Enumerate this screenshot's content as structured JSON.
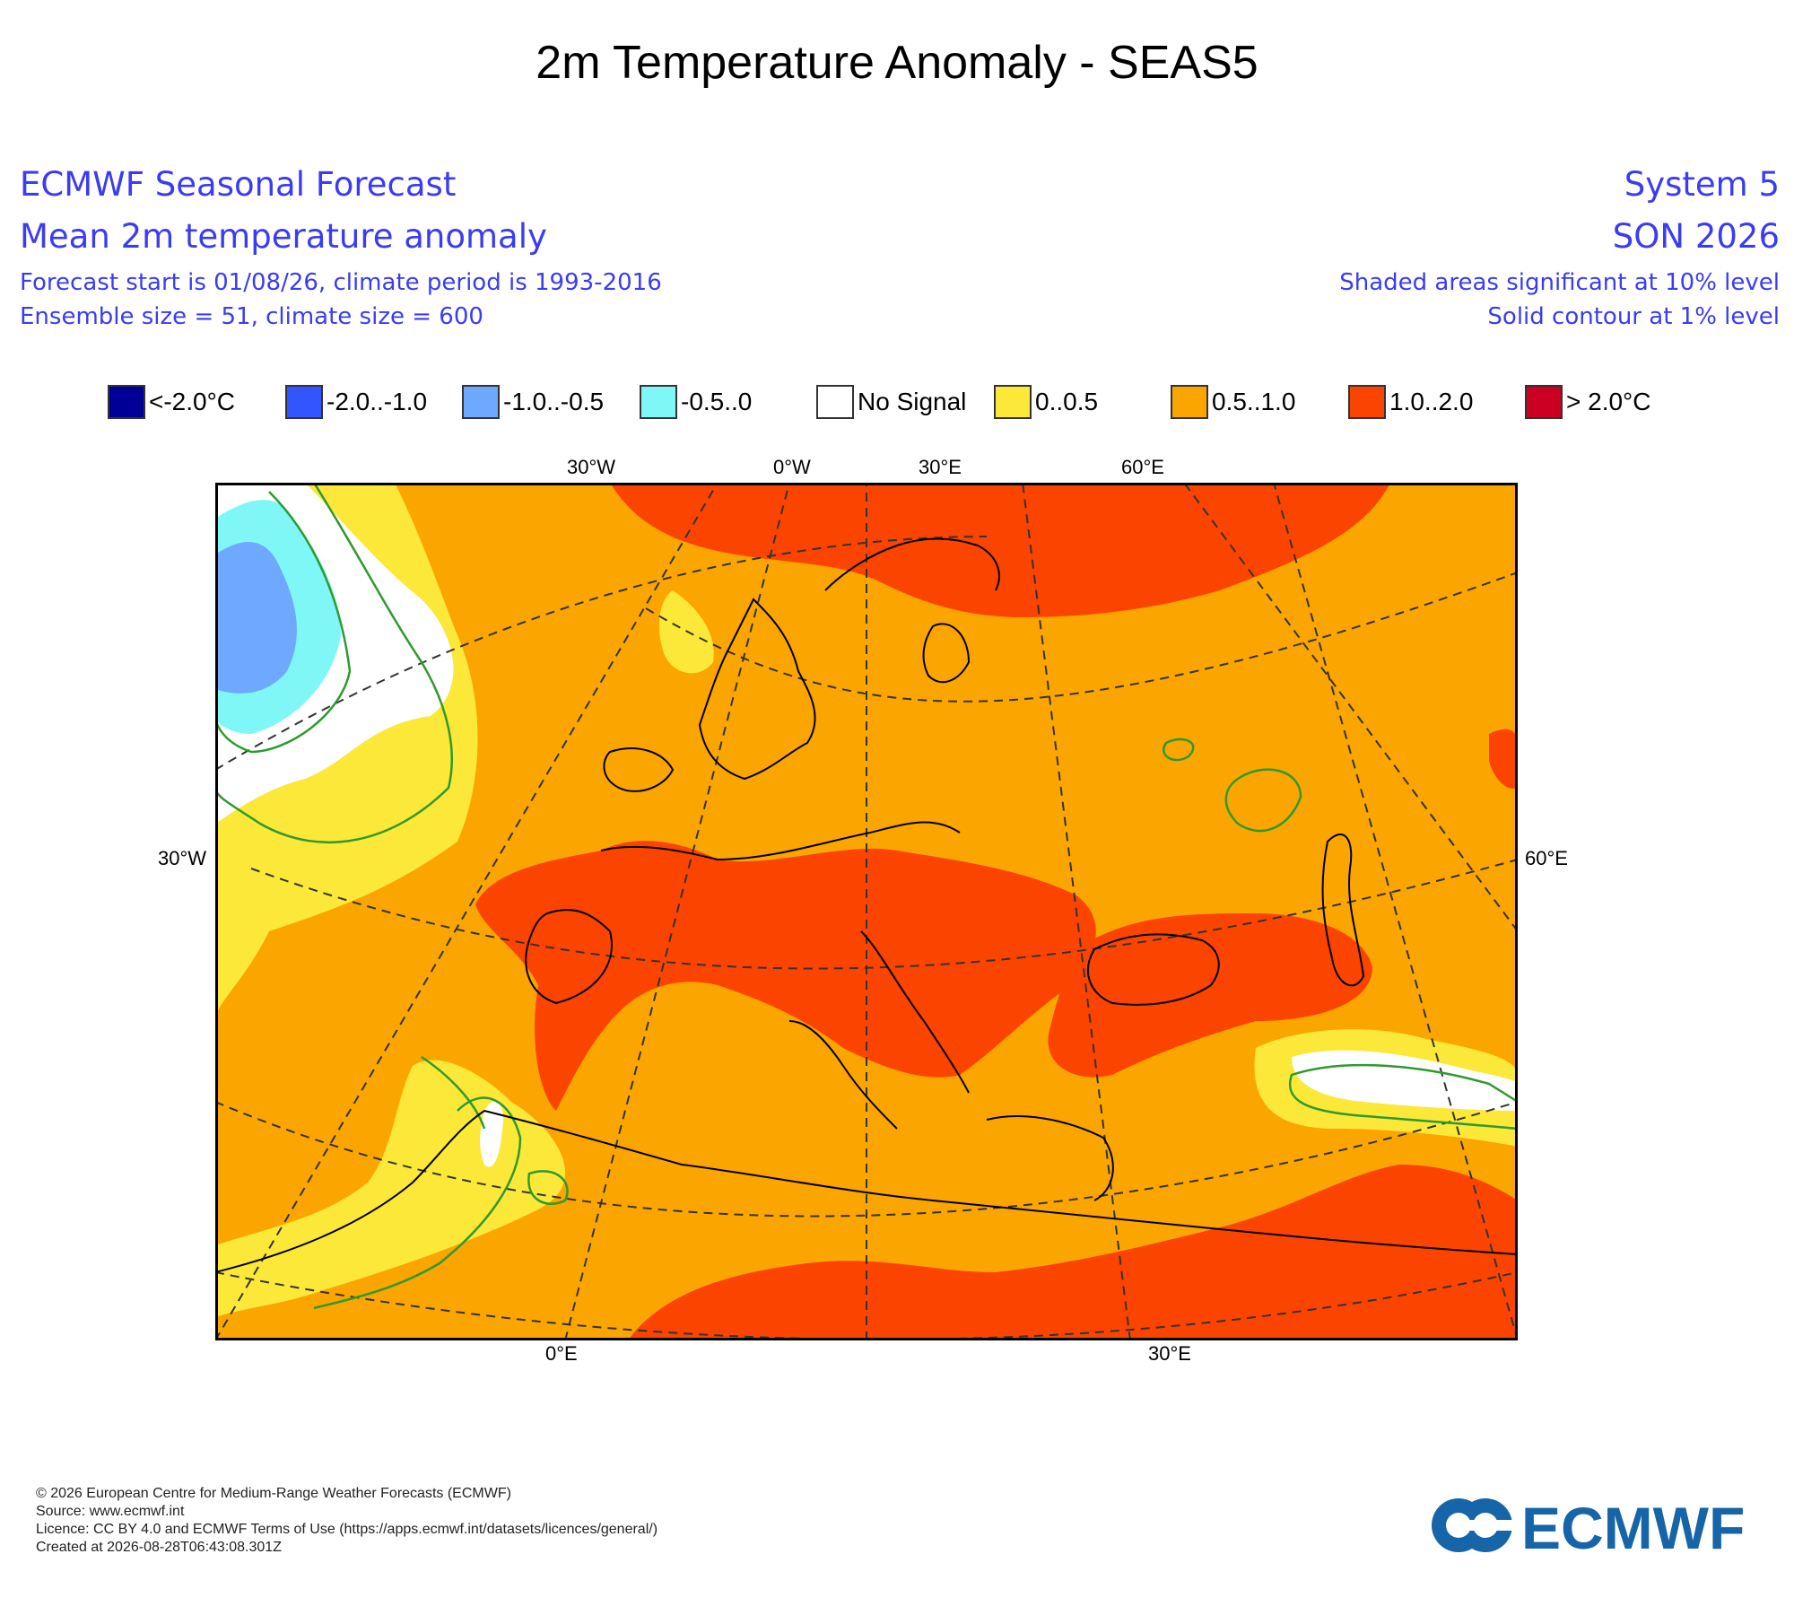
{
  "title": "2m Temperature Anomaly - SEAS5",
  "header": {
    "left": [
      "ECMWF Seasonal Forecast",
      "Mean 2m temperature anomaly",
      "Forecast start is 01/08/26, climate period is 1993-2016",
      "Ensemble size = 51, climate size = 600"
    ],
    "right": [
      "System 5",
      "SON 2026",
      "Shaded areas significant at 10% level",
      "Solid contour at 1% level"
    ]
  },
  "legend": [
    {
      "label": "<-2.0°C",
      "color": "#000099"
    },
    {
      "label": "-2.0..-1.0",
      "color": "#3355ff"
    },
    {
      "label": "-1.0..-0.5",
      "color": "#6fa8ff"
    },
    {
      "label": "-0.5..0",
      "color": "#7ff7f7"
    },
    {
      "label": "No Signal",
      "color": "#ffffff"
    },
    {
      "label": "0..0.5",
      "color": "#fbe838"
    },
    {
      "label": "0.5..1.0",
      "color": "#fba500"
    },
    {
      "label": "1.0..2.0",
      "color": "#fb4400"
    },
    {
      "label": "> 2.0°C",
      "color": "#cc0022"
    }
  ],
  "map": {
    "top_labels": [
      "30°W",
      "0°W",
      "30°E",
      "60°E"
    ],
    "left_label": "30°W",
    "right_label": "60°E",
    "bottom_labels": [
      "0°E",
      "30°E"
    ],
    "contour_color": "#2e9a2e"
  },
  "footer": [
    "© 2026 European Centre for Medium-Range Weather Forecasts (ECMWF)",
    "Source: www.ecmwf.int",
    "Licence: CC BY 4.0 and ECMWF Terms of Use (https://apps.ecmwf.int/datasets/licences/general/)",
    "Created at 2026-08-28T06:43:08.301Z"
  ],
  "logo_text": "ECMWF",
  "logo_color": "#1565a8"
}
